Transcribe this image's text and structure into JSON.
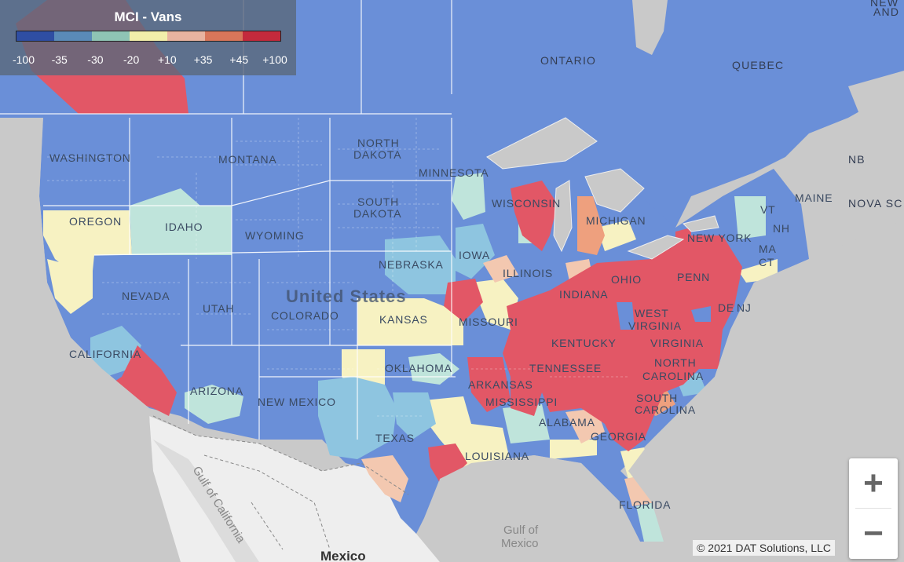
{
  "legend": {
    "title": "MCI - Vans",
    "ticks": [
      "-100",
      "-35",
      "-30",
      "-20",
      "+10",
      "+35",
      "+45",
      "+100"
    ],
    "colors": [
      "#2f4ea3",
      "#5a8ab8",
      "#8fc4b5",
      "#f2eeaa",
      "#e8b3a0",
      "#d8765a",
      "#c42a3c"
    ]
  },
  "palette": {
    "strong_blue": "#6a8fd8",
    "light_blue": "#8ec5e0",
    "pale_green": "#bfe4db",
    "pale_yellow": "#f7f2c2",
    "peach": "#f3c8b0",
    "orange": "#eea07e",
    "red": "#e25766",
    "land_gray": "#c9c9c9",
    "mexico_white": "#eeeeee",
    "water": "#dcdcdc"
  },
  "labels": {
    "canada": [
      "ONTARIO",
      "QUEBEC",
      "NEW",
      "AND",
      "NB",
      "NOVA SC"
    ],
    "states": [
      "WASHINGTON",
      "MONTANA",
      "NORTH",
      "DAKOTA",
      "MINNESOTA",
      "OREGON",
      "IDAHO",
      "SOUTH",
      "DAKOTA",
      "WYOMING",
      "WISCONSIN",
      "MICHIGAN",
      "NEW YORK",
      "MAINE",
      "VT",
      "NH",
      "MA",
      "CT",
      "IOWA",
      "NEBRASKA",
      "ILLINOIS",
      "OHIO",
      "PENN",
      "NEVADA",
      "UTAH",
      "COLORADO",
      "KANSAS",
      "MISSOURI",
      "INDIANA",
      "NJ",
      "DE",
      "WEST",
      "VIRGINIA",
      "KENTUCKY",
      "VIRGINIA",
      "CALIFORNIA",
      "OKLAHOMA",
      "TENNESSEE",
      "NORTH",
      "CAROLINA",
      "ARIZONA",
      "NEW MEXICO",
      "ARKANSAS",
      "SOUTH",
      "CAROLINA",
      "MISSISSIPPI",
      "ALABAMA",
      "GEORGIA",
      "TEXAS",
      "LOUISIANA",
      "FLORIDA"
    ],
    "country": "United States",
    "gulf_mexico": [
      "Gulf of",
      "Mexico"
    ],
    "gulf_california": "Gulf of California",
    "mexico": "Mexico"
  },
  "zoom": {
    "in_label": "+",
    "out_label": "−"
  },
  "copyright": "© 2021 DAT Solutions, LLC"
}
